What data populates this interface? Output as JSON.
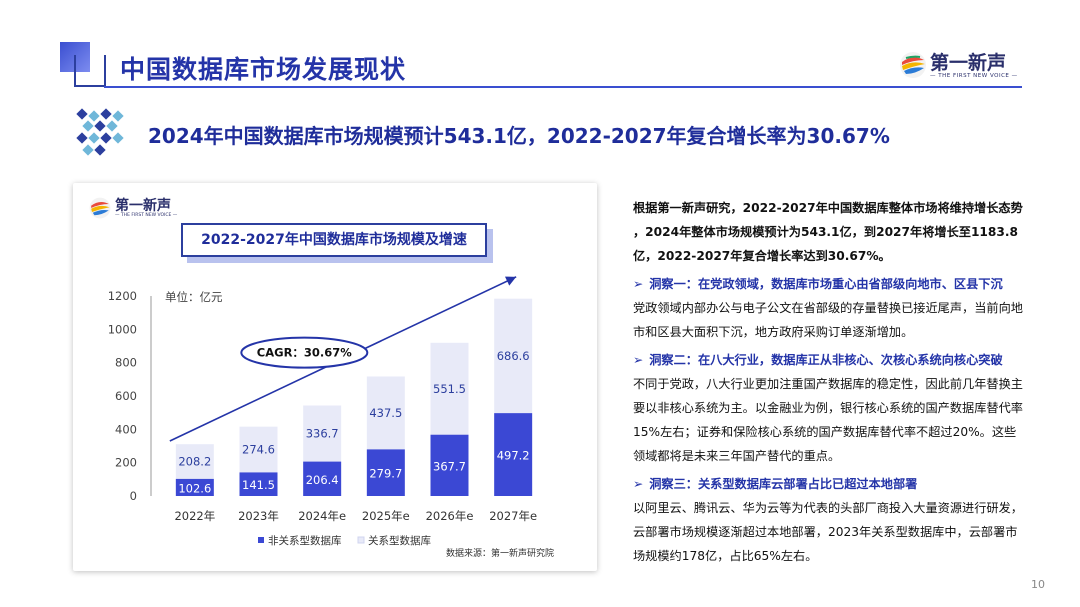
{
  "header": {
    "page_title": "中国数据库市场发展现状",
    "brand_name": "第一新声",
    "brand_sub": "— THE FIRST NEW VOICE —"
  },
  "subtitle": "2024年中国数据库市场规模预计543.1亿，2022-2027年复合增长率为30.67%",
  "chart_card": {
    "brand_name": "第一新声",
    "brand_sub": "— THE FIRST NEW VOICE —",
    "title": "2022-2027年中国数据库市场规模及增速",
    "unit_label": "单位：亿元",
    "cagr_label": "CAGR：30.67%",
    "source": "数据来源：第一新声研究院"
  },
  "chart_data": {
    "type": "bar",
    "stacked": true,
    "title": "2022-2027年中国数据库市场规模及增速",
    "ylabel": "单位：亿元",
    "categories": [
      "2022年",
      "2023年",
      "2024年e",
      "2025年e",
      "2026年e",
      "2027年e"
    ],
    "series": [
      {
        "name": "非关系型数据库",
        "values": [
          102.6,
          141.5,
          206.4,
          279.7,
          367.7,
          497.2
        ],
        "color": "#3b48d4"
      },
      {
        "name": "关系型数据库",
        "values": [
          208.2,
          274.6,
          336.7,
          437.5,
          551.5,
          686.6
        ],
        "color": "#e8eaf8"
      }
    ],
    "ylim": [
      0,
      1200
    ],
    "yticks": [
      0,
      200,
      400,
      600,
      800,
      1000,
      1200
    ],
    "legend_position": "bottom",
    "annotation": "CAGR：30.67%"
  },
  "text": {
    "intro": "根据第一新声研究，2022-2027年中国数据库整体市场将维持增长态势 ，2024年整体市场规模预计为543.1亿，到2027年将增长至1183.8亿，2022-2027年复合增长率达到30.67%。",
    "insight1_head": "洞察一：在党政领域，数据库市场重心由省部级向地市、区县下沉",
    "insight1_body": "党政领域内部办公与电子公文在省部级的存量替换已接近尾声，当前向地市和区县大面积下沉，地方政府采购订单逐渐增加。",
    "insight2_head": "洞察二：在八大行业，数据库正从非核心、次核心系统向核心突破",
    "insight2_body": "不同于党政，八大行业更加注重国产数据库的稳定性，因此前几年替换主要以非核心系统为主。以金融业为例，银行核心系统的国产数据库替代率15%左右；证券和保险核心系统的国产数据库替代率不超过20%。这些领域都将是未来三年国产替代的重点。",
    "insight3_head": "洞察三：关系型数据库云部署占比已超过本地部署",
    "insight3_body": "以阿里云、腾讯云、华为云等为代表的头部厂商投入大量资源进行研发，云部署市场规模逐渐超过本地部署，2023年关系型数据库中，云部署市场规模约178亿，占比65%左右。",
    "arrow": "➢"
  },
  "page_number": "10",
  "colors": {
    "accent": "#2434a8",
    "bar_dark": "#3b48d4",
    "bar_light": "#e8eaf8"
  }
}
